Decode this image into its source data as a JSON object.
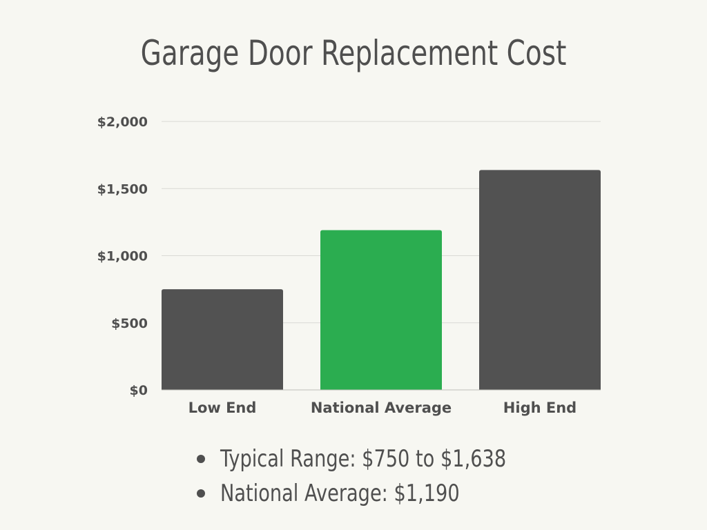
{
  "chart_data": {
    "type": "bar",
    "title": "Garage Door Replacement Cost",
    "categories": [
      "Low End",
      "National Average",
      "High End"
    ],
    "values": [
      750,
      1190,
      1638
    ],
    "ylim": [
      0,
      2000
    ],
    "yticks": [
      0,
      500,
      1000,
      1500,
      2000
    ],
    "ytick_labels": [
      "$0",
      "$500",
      "$1,000",
      "$1,500",
      "$2,000"
    ],
    "xlabel": "",
    "ylabel": "",
    "grid": true,
    "bar_colors": [
      "#525252",
      "#2bad50",
      "#525252"
    ],
    "gridline_color": "#d9d9d4"
  },
  "bullets": [
    "Typical Range: $750 to $1,638",
    "National Average: $1,190"
  ]
}
